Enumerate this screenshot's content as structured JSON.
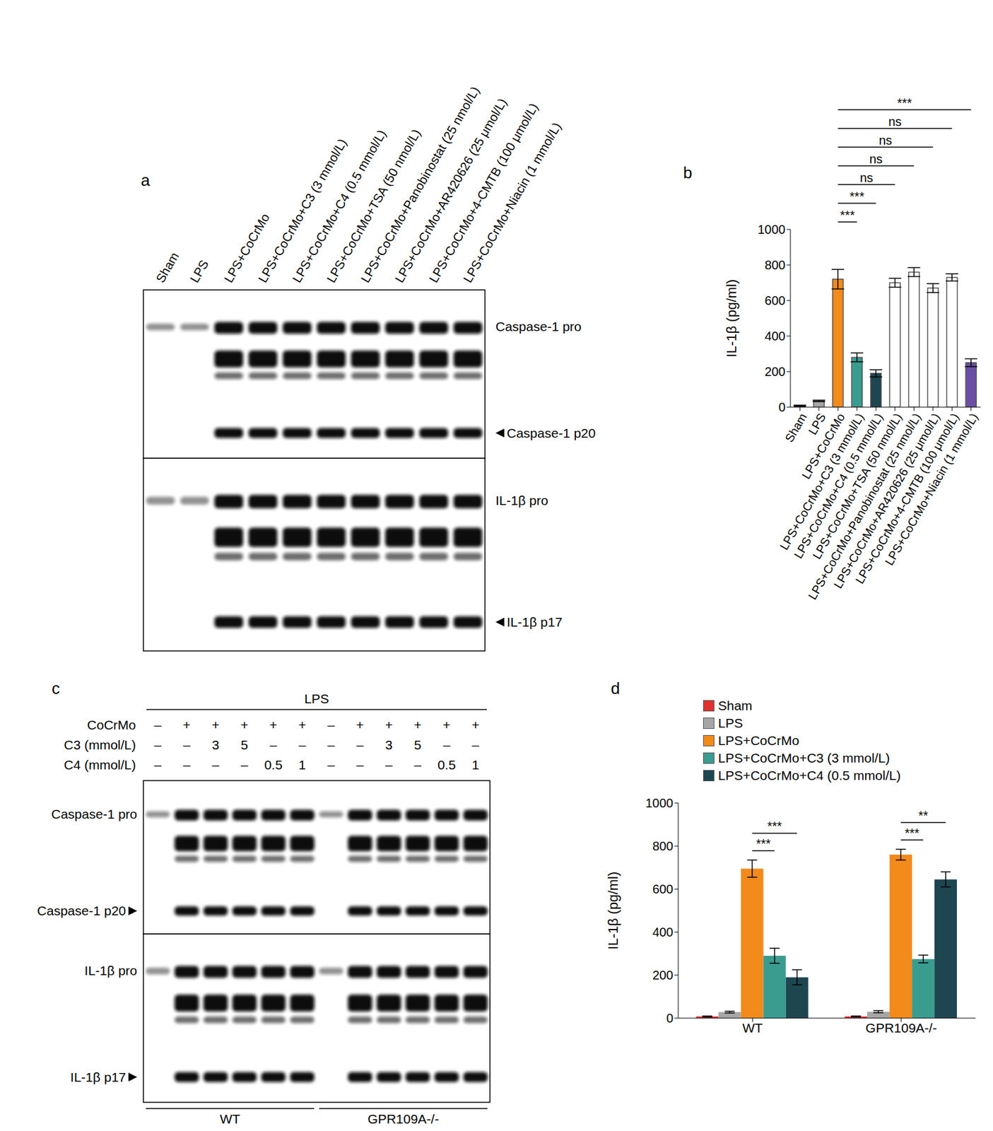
{
  "chart_data": [
    {
      "type": "bar",
      "title": "b",
      "y_label": "IL-1β (pg/ml)",
      "categories": [
        "Sham",
        "LPS",
        "LPS+CoCrMo",
        "LPS+CoCrMo+C3 (3 mmol/L)",
        "LPS+CoCrMo+C4 (0.5 mmol/L)",
        "LPS+CoCrMo+TSA (50 nmol/L)",
        "LPS+CoCrMo+Panobinostat (25 nmol/L)",
        "LPS+CoCrMo+AR420626 (25 μmol/L)",
        "LPS+CoCrMo+4-CMTB (100 μmol/L)",
        "LPS+CoCrMo+Niacin (1 mmol/L)"
      ],
      "values": [
        8,
        35,
        720,
        280,
        190,
        700,
        760,
        670,
        730,
        250
      ],
      "errors": [
        3,
        4,
        55,
        25,
        20,
        25,
        25,
        25,
        20,
        22
      ],
      "colors": [
        "#e0312f",
        "#a6a6a6",
        "#f28a1c",
        "#3a9c8f",
        "#1d4651",
        "#ffffff",
        "#ffffff",
        "#ffffff",
        "#ffffff",
        "#6b4fa6"
      ],
      "ylim": [
        0,
        1000
      ],
      "yticks": [
        0,
        200,
        400,
        600,
        800,
        1000
      ],
      "annotations": [
        {
          "from": "LPS+CoCrMo",
          "to": "LPS+CoCrMo+C3 (3 mmol/L)",
          "label": "***"
        },
        {
          "from": "LPS+CoCrMo",
          "to": "LPS+CoCrMo+C4 (0.5 mmol/L)",
          "label": "***"
        },
        {
          "from": "LPS+CoCrMo",
          "to": "LPS+CoCrMo+TSA (50 nmol/L)",
          "label": "ns"
        },
        {
          "from": "LPS+CoCrMo",
          "to": "LPS+CoCrMo+Panobinostat (25 nmol/L)",
          "label": "ns"
        },
        {
          "from": "LPS+CoCrMo",
          "to": "LPS+CoCrMo+AR420626 (25 μmol/L)",
          "label": "ns"
        },
        {
          "from": "LPS+CoCrMo",
          "to": "LPS+CoCrMo+4-CMTB (100 μmol/L)",
          "label": "ns"
        },
        {
          "from": "LPS+CoCrMo",
          "to": "LPS+CoCrMo+Niacin (1 mmol/L)",
          "label": "***"
        }
      ]
    },
    {
      "type": "bar",
      "title": "d",
      "y_label": "IL-1β (pg/ml)",
      "categories": [
        "WT",
        "GPR109A-/-"
      ],
      "series": [
        {
          "name": "Sham",
          "color": "#e0312f",
          "values": [
            8,
            8
          ],
          "errors": [
            2,
            2
          ]
        },
        {
          "name": "LPS",
          "color": "#a6a6a6",
          "values": [
            28,
            30
          ],
          "errors": [
            4,
            5
          ]
        },
        {
          "name": "LPS+CoCrMo",
          "color": "#f28a1c",
          "values": [
            695,
            760
          ],
          "errors": [
            40,
            25
          ]
        },
        {
          "name": "LPS+CoCrMo+C3 (3 mmol/L)",
          "color": "#3a9c8f",
          "values": [
            290,
            275
          ],
          "errors": [
            35,
            18
          ]
        },
        {
          "name": "LPS+CoCrMo+C4 (0.5 mmol/L)",
          "color": "#1d4651",
          "values": [
            190,
            645
          ],
          "errors": [
            35,
            35
          ]
        }
      ],
      "ylim": [
        0,
        1000
      ],
      "yticks": [
        0,
        200,
        400,
        600,
        800,
        1000
      ],
      "legend": "top-left",
      "annotations": [
        {
          "category": "WT",
          "from": "LPS+CoCrMo",
          "to": "LPS+CoCrMo+C3 (3 mmol/L)",
          "label": "***"
        },
        {
          "category": "WT",
          "from": "LPS+CoCrMo",
          "to": "LPS+CoCrMo+C4 (0.5 mmol/L)",
          "label": "***"
        },
        {
          "category": "GPR109A-/-",
          "from": "LPS+CoCrMo",
          "to": "LPS+CoCrMo+C3 (3 mmol/L)",
          "label": "***"
        },
        {
          "category": "GPR109A-/-",
          "from": "LPS+CoCrMo",
          "to": "LPS+CoCrMo+C4 (0.5 mmol/L)",
          "label": "**"
        }
      ]
    }
  ],
  "blots": [
    {
      "title": "a",
      "lanes": [
        "Sham",
        "LPS",
        "LPS+CoCrMo",
        "LPS+CoCrMo+C3 (3 mmol/L)",
        "LPS+CoCrMo+C4 (0.5 mmol/L)",
        "LPS+CoCrMo+TSA (50 nmol/L)",
        "LPS+CoCrMo+Panobinostat (25 nmol/L)",
        "LPS+CoCrMo+AR420626 (25 μmol/L)",
        "LPS+CoCrMo+4-CMTB (100 μmol/L)",
        "LPS+CoCrMo+Niacin (1 mmol/L)"
      ],
      "rows": [
        {
          "bands": [
            {
              "label": "Caspase-1 pro",
              "arrow": false
            },
            {
              "label": "Caspase-1 p20",
              "arrow": true
            }
          ]
        },
        {
          "bands": [
            {
              "label": "IL-1β pro",
              "arrow": false
            },
            {
              "label": "IL-1β p17",
              "arrow": true
            }
          ]
        }
      ]
    },
    {
      "title": "c",
      "header": "LPS",
      "conditions": [
        {
          "label": "CoCrMo",
          "values": [
            "–",
            "+",
            "+",
            "+",
            "+",
            "+",
            "–",
            "+",
            "+",
            "+",
            "+",
            "+"
          ]
        },
        {
          "label": "C3 (mmol/L)",
          "values": [
            "–",
            "–",
            "3",
            "5",
            "–",
            "–",
            "–",
            "–",
            "3",
            "5",
            "–",
            "–"
          ]
        },
        {
          "label": "C4 (mmol/L)",
          "values": [
            "–",
            "–",
            "–",
            "–",
            "0.5",
            "1",
            "–",
            "–",
            "–",
            "–",
            "0.5",
            "1"
          ]
        }
      ],
      "rows": [
        {
          "bands": [
            {
              "label": "Caspase-1 pro",
              "arrow": false
            },
            {
              "label": "Caspase-1 p20",
              "arrow": true
            }
          ]
        },
        {
          "bands": [
            {
              "label": "IL-1β pro",
              "arrow": false
            },
            {
              "label": "IL-1β p17",
              "arrow": true
            }
          ]
        }
      ],
      "groups": [
        {
          "label": "WT"
        },
        {
          "label": "GPR109A-/-"
        }
      ]
    }
  ]
}
